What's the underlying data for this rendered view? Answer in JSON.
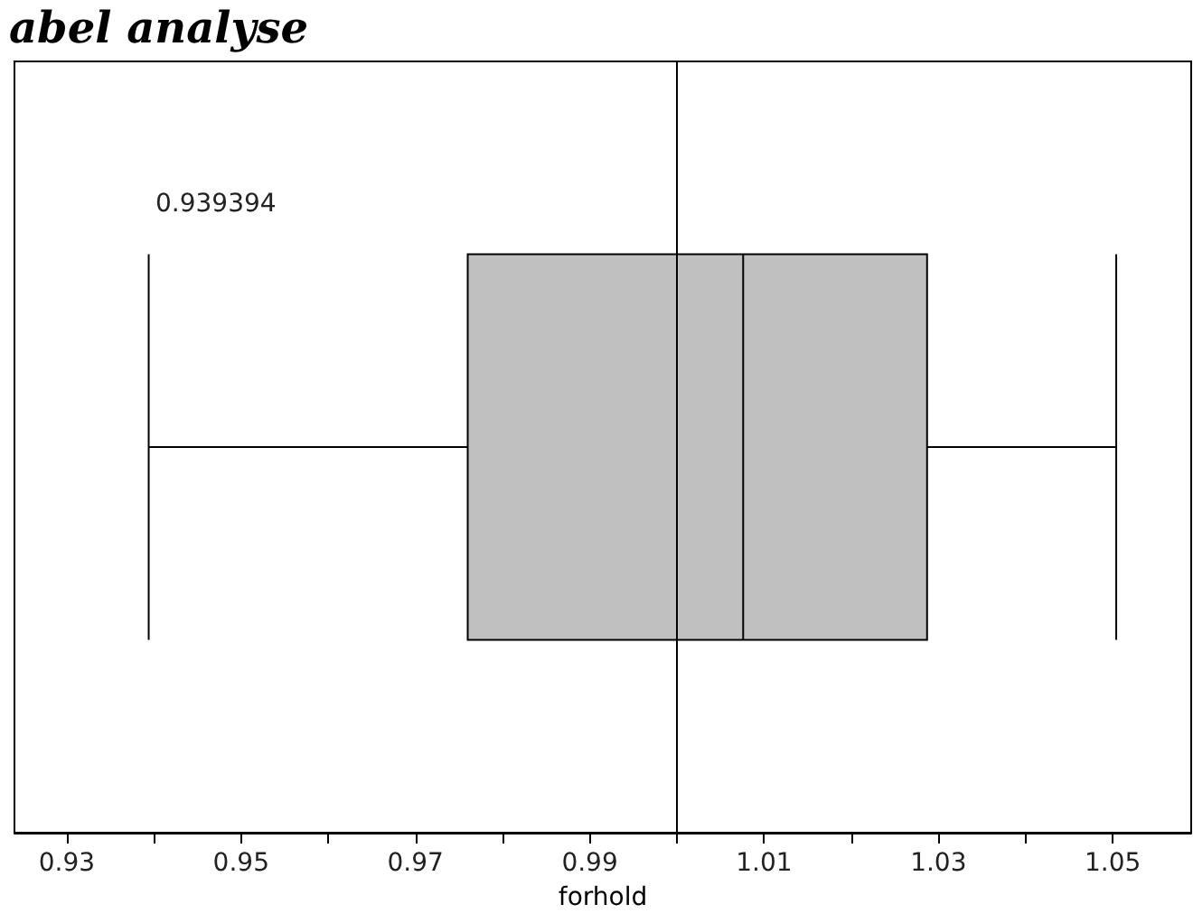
{
  "chart_data": {
    "type": "box",
    "title": "abel analyse",
    "xlabel": "forhold",
    "orientation": "horizontal",
    "color": "#c0c0c0",
    "categories": [
      null
    ],
    "boxes": [
      {
        "low": 0.9394,
        "q1": 0.976,
        "median": 1.0076,
        "q3": 1.0287,
        "high": 1.0504
      }
    ],
    "xlim": [
      0.924,
      1.059
    ],
    "xticks": [
      0.93,
      {
        "value": 0.94,
        "label": null
      },
      0.95,
      {
        "value": 0.96,
        "label": null
      },
      0.97,
      {
        "value": 0.98,
        "label": null
      },
      0.99,
      {
        "value": 1.0,
        "label": null
      },
      1.01,
      {
        "value": 1.02,
        "label": null
      },
      1.03,
      {
        "value": 1.04,
        "label": null
      },
      1.05
    ],
    "ref_lines": [
      {
        "axis": "x",
        "value": 1.0,
        "color": "#000000"
      }
    ],
    "annotations": [
      "0.939394"
    ],
    "grid": false
  }
}
